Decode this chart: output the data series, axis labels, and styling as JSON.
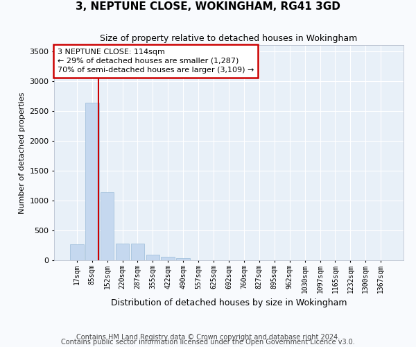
{
  "title": "3, NEPTUNE CLOSE, WOKINGHAM, RG41 3GD",
  "subtitle": "Size of property relative to detached houses in Wokingham",
  "xlabel": "Distribution of detached houses by size in Wokingham",
  "ylabel": "Number of detached properties",
  "bar_color": "#c5d8ef",
  "bar_edge_color": "#9bbcd8",
  "plot_bg_color": "#e8f0f8",
  "fig_bg_color": "#f8fafd",
  "grid_color": "#ffffff",
  "categories": [
    "17sqm",
    "85sqm",
    "152sqm",
    "220sqm",
    "287sqm",
    "355sqm",
    "422sqm",
    "490sqm",
    "557sqm",
    "625sqm",
    "692sqm",
    "760sqm",
    "827sqm",
    "895sqm",
    "962sqm",
    "1030sqm",
    "1097sqm",
    "1165sqm",
    "1232sqm",
    "1300sqm",
    "1367sqm"
  ],
  "values": [
    270,
    2640,
    1140,
    280,
    280,
    90,
    55,
    40,
    0,
    0,
    0,
    0,
    0,
    0,
    0,
    0,
    0,
    0,
    0,
    0,
    0
  ],
  "ylim": [
    0,
    3600
  ],
  "yticks": [
    0,
    500,
    1000,
    1500,
    2000,
    2500,
    3000,
    3500
  ],
  "red_line_x": 1.43,
  "annotation_text": "3 NEPTUNE CLOSE: 114sqm\n← 29% of detached houses are smaller (1,287)\n70% of semi-detached houses are larger (3,109) →",
  "annotation_box_facecolor": "#ffffff",
  "annotation_border_color": "#cc0000",
  "footnote1": "Contains HM Land Registry data © Crown copyright and database right 2024.",
  "footnote2": "Contains public sector information licensed under the Open Government Licence v3.0.",
  "title_fontsize": 11,
  "subtitle_fontsize": 9,
  "xlabel_fontsize": 9,
  "ylabel_fontsize": 8,
  "tick_fontsize": 8,
  "xtick_fontsize": 7,
  "annotation_fontsize": 8,
  "footnote_fontsize": 7
}
